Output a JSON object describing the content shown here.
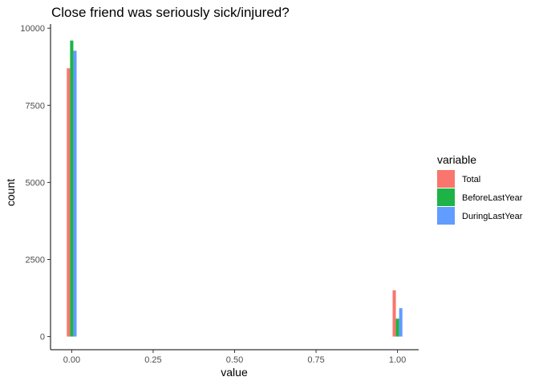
{
  "chart_data": {
    "type": "bar",
    "title": "Close friend was seriously sick/injured?",
    "xlabel": "value",
    "ylabel": "count",
    "x": [
      0,
      1
    ],
    "xlim": [
      -0.065,
      1.065
    ],
    "ylim": [
      0,
      10200
    ],
    "xticks": [
      0,
      0.25,
      0.5,
      0.75,
      1
    ],
    "xtick_labels": [
      "0.00",
      "0.25",
      "0.50",
      "0.75",
      "1.00"
    ],
    "yticks": [
      0,
      2500,
      5000,
      7500,
      10000
    ],
    "ytick_labels": [
      "0",
      "2500",
      "5000",
      "7500",
      "10000"
    ],
    "grid": false,
    "legend": {
      "title": "variable",
      "placement": "right"
    },
    "series": [
      {
        "name": "Total",
        "color": "#F8766D",
        "values": [
          8700,
          1500
        ]
      },
      {
        "name": "BeforeLastYear",
        "color": "#1EB346",
        "values": [
          9600,
          580
        ]
      },
      {
        "name": "DuringLastYear",
        "color": "#619CFF",
        "values": [
          9270,
          920
        ]
      }
    ]
  }
}
